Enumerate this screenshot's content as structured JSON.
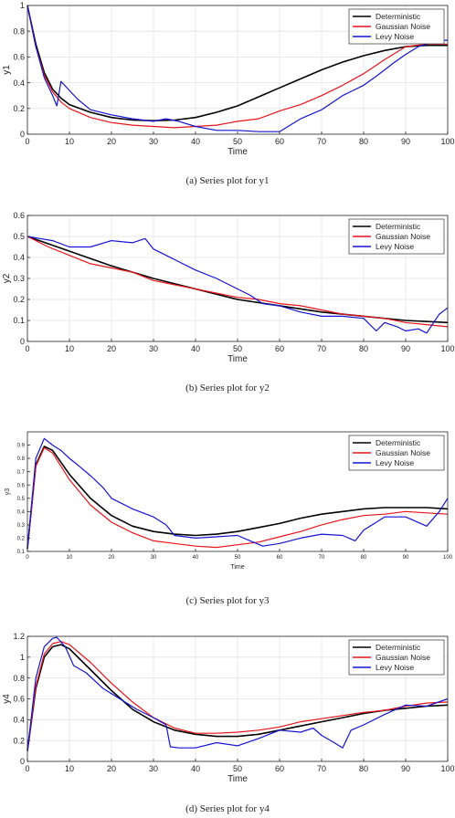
{
  "figure": {
    "captions": [
      "(a) Series plot for y1",
      "(b) Series plot for y2",
      "(c) Series plot for y3",
      "(d) Series plot for y4"
    ]
  },
  "colors": {
    "deterministic": "#000000",
    "gaussian": "#e8141a",
    "levy": "#1414d2",
    "grid": "#e3e3e3",
    "axis": "#262626"
  },
  "chart_data": [
    {
      "type": "line",
      "title": "",
      "xlabel": "Time",
      "ylabel": "y1",
      "xlim": [
        0,
        100
      ],
      "ylim": [
        0,
        1
      ],
      "xticks": [
        0,
        10,
        20,
        30,
        40,
        50,
        60,
        70,
        80,
        90,
        100
      ],
      "xtick_labels": [
        "0",
        "10",
        "20",
        "30",
        "40",
        "50",
        "60",
        "70",
        "80",
        "90",
        "100"
      ],
      "yticks": [
        0,
        0.2,
        0.4,
        0.6,
        0.8,
        1
      ],
      "ytick_labels": [
        "0",
        "0.2",
        "0.4",
        "0.6",
        "0.8",
        "1"
      ],
      "grid": true,
      "legend": "top-right",
      "series": [
        {
          "name": "Deterministic",
          "color": "#000000",
          "x": [
            0,
            2,
            4,
            6,
            8,
            10,
            15,
            20,
            25,
            30,
            35,
            40,
            45,
            50,
            55,
            60,
            65,
            70,
            75,
            80,
            85,
            90,
            95,
            100
          ],
          "y": [
            1.0,
            0.7,
            0.48,
            0.35,
            0.28,
            0.23,
            0.17,
            0.13,
            0.11,
            0.105,
            0.11,
            0.13,
            0.17,
            0.22,
            0.29,
            0.36,
            0.43,
            0.5,
            0.56,
            0.61,
            0.65,
            0.68,
            0.69,
            0.69
          ]
        },
        {
          "name": "Gaussian Noise",
          "color": "#e8141a",
          "x": [
            0,
            2,
            4,
            6,
            8,
            10,
            15,
            20,
            25,
            30,
            35,
            40,
            45,
            50,
            55,
            60,
            65,
            70,
            75,
            80,
            85,
            90,
            95,
            100
          ],
          "y": [
            1.0,
            0.68,
            0.46,
            0.33,
            0.25,
            0.2,
            0.13,
            0.09,
            0.07,
            0.06,
            0.05,
            0.06,
            0.07,
            0.1,
            0.12,
            0.18,
            0.23,
            0.3,
            0.38,
            0.47,
            0.58,
            0.68,
            0.7,
            0.7
          ]
        },
        {
          "name": "Levy Noise",
          "color": "#1414d2",
          "x": [
            0,
            2,
            4,
            6,
            7,
            8,
            10,
            12,
            15,
            20,
            25,
            30,
            33,
            36,
            40,
            45,
            50,
            55,
            60,
            65,
            70,
            75,
            80,
            83,
            85,
            87,
            90,
            93,
            95,
            97,
            100
          ],
          "y": [
            1.0,
            0.68,
            0.44,
            0.3,
            0.22,
            0.41,
            0.34,
            0.27,
            0.19,
            0.15,
            0.12,
            0.1,
            0.12,
            0.1,
            0.06,
            0.03,
            0.03,
            0.02,
            0.02,
            0.12,
            0.19,
            0.3,
            0.38,
            0.45,
            0.5,
            0.55,
            0.62,
            0.68,
            0.7,
            0.73,
            0.73
          ]
        }
      ]
    },
    {
      "type": "line",
      "title": "",
      "xlabel": "Time",
      "ylabel": "y2",
      "xlim": [
        0,
        100
      ],
      "ylim": [
        0,
        0.6
      ],
      "xticks": [
        0,
        10,
        20,
        30,
        40,
        50,
        60,
        70,
        80,
        90,
        100
      ],
      "xtick_labels": [
        "0",
        "10",
        "20",
        "30",
        "40",
        "50",
        "60",
        "70",
        "80",
        "90",
        "100"
      ],
      "yticks": [
        0,
        0.1,
        0.2,
        0.3,
        0.4,
        0.5,
        0.6
      ],
      "ytick_labels": [
        "0",
        "0.1",
        "0.2",
        "0.3",
        "0.4",
        "0.5",
        "0.6"
      ],
      "grid": true,
      "legend": "top-right",
      "series": [
        {
          "name": "Deterministic",
          "color": "#000000",
          "x": [
            0,
            10,
            20,
            30,
            40,
            50,
            60,
            70,
            80,
            90,
            100
          ],
          "y": [
            0.5,
            0.43,
            0.36,
            0.3,
            0.25,
            0.2,
            0.17,
            0.14,
            0.12,
            0.1,
            0.09
          ]
        },
        {
          "name": "Gaussian Noise",
          "color": "#e8141a",
          "x": [
            0,
            5,
            10,
            15,
            20,
            25,
            30,
            35,
            40,
            45,
            50,
            55,
            60,
            65,
            70,
            75,
            80,
            85,
            90,
            95,
            100
          ],
          "y": [
            0.5,
            0.45,
            0.41,
            0.37,
            0.35,
            0.33,
            0.29,
            0.27,
            0.25,
            0.23,
            0.21,
            0.2,
            0.18,
            0.17,
            0.15,
            0.13,
            0.12,
            0.11,
            0.09,
            0.08,
            0.07
          ]
        },
        {
          "name": "Levy Noise",
          "color": "#1414d2",
          "x": [
            0,
            3,
            6,
            10,
            15,
            20,
            25,
            28,
            30,
            33,
            36,
            40,
            45,
            50,
            53,
            56,
            60,
            65,
            70,
            75,
            80,
            83,
            85,
            88,
            90,
            93,
            95,
            98,
            100
          ],
          "y": [
            0.5,
            0.49,
            0.48,
            0.45,
            0.45,
            0.48,
            0.47,
            0.49,
            0.44,
            0.41,
            0.38,
            0.34,
            0.3,
            0.25,
            0.22,
            0.18,
            0.17,
            0.14,
            0.12,
            0.12,
            0.11,
            0.05,
            0.09,
            0.07,
            0.05,
            0.06,
            0.04,
            0.13,
            0.16
          ]
        }
      ]
    },
    {
      "type": "line",
      "title": "",
      "xlabel": "Time",
      "ylabel": "y3",
      "xlim": [
        0,
        100
      ],
      "ylim": [
        0.1,
        1.0
      ],
      "xticks": [
        0,
        10,
        20,
        30,
        40,
        50,
        60,
        70,
        80,
        90,
        100
      ],
      "xtick_labels": [
        "0",
        "10",
        "20",
        "30",
        "40",
        "50",
        "60",
        "70",
        "80",
        "90",
        "100"
      ],
      "yticks": [
        0.1,
        0.2,
        0.3,
        0.4,
        0.5,
        0.6,
        0.7,
        0.8,
        0.9
      ],
      "ytick_labels": [
        "0.1",
        "0.2",
        "0.3",
        "0.4",
        "0.5",
        "0.6",
        "0.7",
        "0.8",
        "0.9"
      ],
      "grid": false,
      "legend": "top-right",
      "series": [
        {
          "name": "Deterministic",
          "color": "#000000",
          "x": [
            0,
            2,
            4,
            6,
            8,
            10,
            15,
            20,
            25,
            30,
            35,
            40,
            45,
            50,
            55,
            60,
            65,
            70,
            75,
            80,
            85,
            90,
            95,
            100
          ],
          "y": [
            0.12,
            0.75,
            0.89,
            0.86,
            0.77,
            0.68,
            0.5,
            0.37,
            0.29,
            0.25,
            0.23,
            0.22,
            0.23,
            0.25,
            0.28,
            0.31,
            0.35,
            0.38,
            0.4,
            0.42,
            0.43,
            0.43,
            0.43,
            0.42
          ]
        },
        {
          "name": "Gaussian Noise",
          "color": "#e8141a",
          "x": [
            0,
            2,
            4,
            6,
            8,
            10,
            15,
            20,
            25,
            30,
            35,
            40,
            45,
            50,
            55,
            60,
            65,
            70,
            75,
            80,
            85,
            90,
            95,
            100
          ],
          "y": [
            0.12,
            0.74,
            0.88,
            0.84,
            0.74,
            0.64,
            0.45,
            0.32,
            0.24,
            0.18,
            0.16,
            0.14,
            0.13,
            0.15,
            0.17,
            0.21,
            0.25,
            0.3,
            0.34,
            0.37,
            0.38,
            0.4,
            0.39,
            0.38
          ]
        },
        {
          "name": "Levy Noise",
          "color": "#1414d2",
          "x": [
            0,
            2,
            4,
            6,
            8,
            10,
            12,
            15,
            18,
            20,
            25,
            30,
            33,
            35,
            40,
            45,
            50,
            53,
            56,
            60,
            65,
            70,
            75,
            78,
            80,
            85,
            90,
            95,
            98,
            100
          ],
          "y": [
            0.12,
            0.8,
            0.95,
            0.9,
            0.86,
            0.8,
            0.75,
            0.67,
            0.58,
            0.5,
            0.42,
            0.36,
            0.3,
            0.22,
            0.2,
            0.21,
            0.22,
            0.18,
            0.14,
            0.16,
            0.2,
            0.23,
            0.22,
            0.18,
            0.26,
            0.36,
            0.36,
            0.29,
            0.4,
            0.5
          ]
        }
      ]
    },
    {
      "type": "line",
      "title": "",
      "xlabel": "Time",
      "ylabel": "y4",
      "xlim": [
        0,
        100
      ],
      "ylim": [
        0,
        1.2
      ],
      "xticks": [
        0,
        10,
        20,
        30,
        40,
        50,
        60,
        70,
        80,
        90,
        100
      ],
      "xtick_labels": [
        "0",
        "10",
        "20",
        "30",
        "40",
        "50",
        "60",
        "70",
        "80",
        "90",
        "100"
      ],
      "yticks": [
        0,
        0.2,
        0.4,
        0.6,
        0.8,
        1,
        1.2
      ],
      "ytick_labels": [
        "0",
        "0.2",
        "0.4",
        "0.6",
        "0.8",
        "1",
        "1.2"
      ],
      "grid": true,
      "legend": "top-right",
      "series": [
        {
          "name": "Deterministic",
          "color": "#000000",
          "x": [
            0,
            2,
            4,
            6,
            8,
            10,
            15,
            20,
            25,
            30,
            35,
            40,
            45,
            50,
            55,
            60,
            65,
            70,
            75,
            80,
            85,
            90,
            95,
            100
          ],
          "y": [
            0.1,
            0.7,
            1.0,
            1.1,
            1.12,
            1.08,
            0.88,
            0.68,
            0.5,
            0.38,
            0.3,
            0.26,
            0.24,
            0.24,
            0.26,
            0.3,
            0.34,
            0.38,
            0.42,
            0.46,
            0.49,
            0.51,
            0.53,
            0.54
          ]
        },
        {
          "name": "Gaussian Noise",
          "color": "#e8141a",
          "x": [
            0,
            2,
            4,
            6,
            8,
            10,
            15,
            20,
            25,
            30,
            35,
            40,
            45,
            50,
            55,
            60,
            65,
            70,
            75,
            80,
            85,
            90,
            95,
            100
          ],
          "y": [
            0.1,
            0.72,
            1.03,
            1.13,
            1.15,
            1.12,
            0.95,
            0.75,
            0.57,
            0.42,
            0.32,
            0.27,
            0.27,
            0.28,
            0.3,
            0.33,
            0.38,
            0.41,
            0.44,
            0.47,
            0.49,
            0.53,
            0.56,
            0.57
          ]
        },
        {
          "name": "Levy Noise",
          "color": "#1414d2",
          "x": [
            0,
            2,
            4,
            6,
            7,
            9,
            11,
            14,
            18,
            22,
            26,
            30,
            33,
            34,
            36,
            40,
            45,
            50,
            55,
            60,
            65,
            68,
            70,
            73,
            75,
            77,
            80,
            85,
            90,
            95,
            100
          ],
          "y": [
            0.1,
            0.8,
            1.1,
            1.18,
            1.19,
            1.1,
            0.92,
            0.85,
            0.7,
            0.6,
            0.5,
            0.42,
            0.35,
            0.14,
            0.13,
            0.13,
            0.18,
            0.15,
            0.22,
            0.3,
            0.28,
            0.32,
            0.25,
            0.18,
            0.13,
            0.3,
            0.35,
            0.45,
            0.54,
            0.53,
            0.6
          ]
        }
      ]
    }
  ]
}
